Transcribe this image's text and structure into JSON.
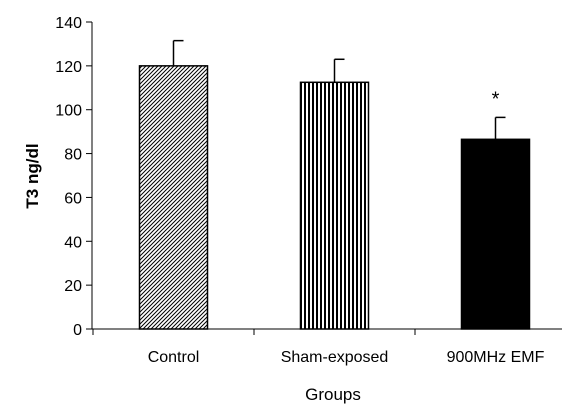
{
  "chart_data": {
    "type": "bar",
    "title": "",
    "xlabel": "Groups",
    "ylabel": "T3 ng/dl",
    "ylim": [
      0,
      140
    ],
    "yticks": [
      0,
      20,
      40,
      60,
      80,
      100,
      120,
      140
    ],
    "grid": false,
    "categories": [
      "Control",
      "Sham-exposed",
      "900MHz EMF"
    ],
    "values": [
      120,
      112.5,
      86.5
    ],
    "errors": [
      11.5,
      10.5,
      10
    ],
    "fills": [
      "diagonal-hatch",
      "vertical-stripes",
      "solid"
    ],
    "fill_color": "#000000",
    "annotations": [
      {
        "category": "900MHz EMF",
        "text": "*"
      }
    ]
  }
}
